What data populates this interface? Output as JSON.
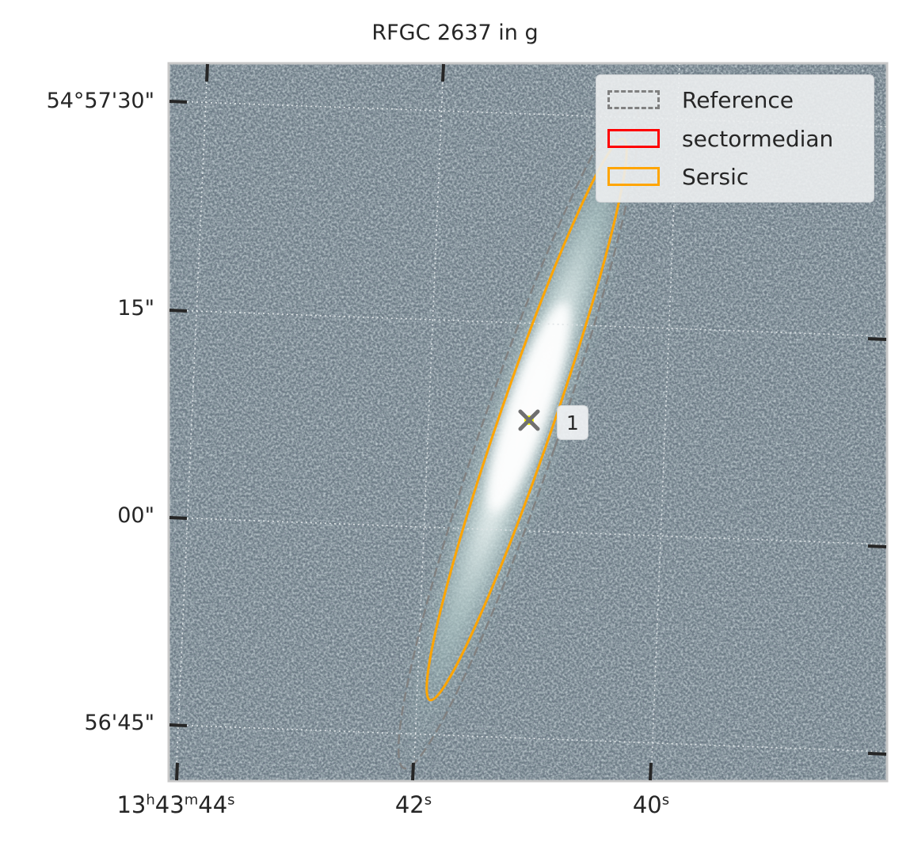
{
  "title": "RFGC 2637 in g",
  "y_axis": {
    "tick_labels": [
      "54°57'30\"",
      "15\"",
      "00\"",
      "56'45\""
    ]
  },
  "x_axis": {
    "tick_labels": [
      {
        "main": "13",
        "h": "h",
        "m_val": "43",
        "m": "m",
        "s_val": "44",
        "s": "s"
      },
      {
        "s_val": "42",
        "s": "s"
      },
      {
        "s_val": "40",
        "s": "s"
      }
    ]
  },
  "legend": {
    "items": [
      {
        "label": "Reference",
        "color": "#808080",
        "style": "dashed"
      },
      {
        "label": "sectormedian",
        "color": "#ff0000",
        "style": "solid"
      },
      {
        "label": "Sersic",
        "color": "#ffa500",
        "style": "solid"
      }
    ]
  },
  "source": {
    "label": "1",
    "marker_color": "#707070",
    "center_color": "#ffff00"
  },
  "colors": {
    "image_background": "#6f7f88",
    "galaxy_core": "#ffffff",
    "grid": "#d8dde0"
  }
}
